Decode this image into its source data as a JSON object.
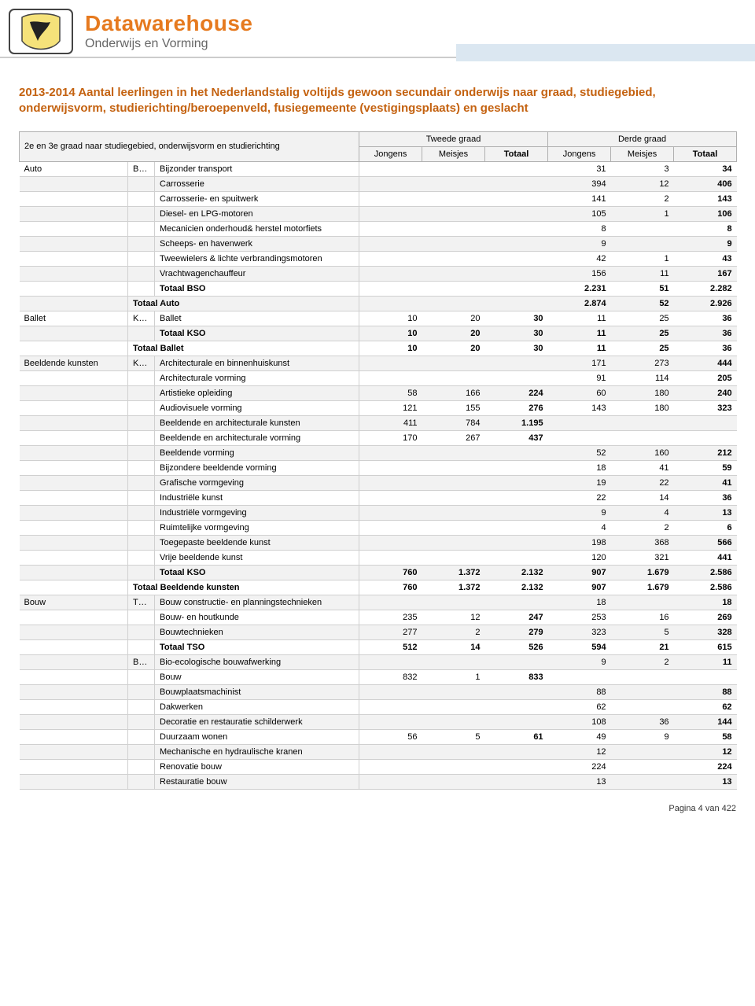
{
  "brand": {
    "title": "Datawarehouse",
    "subtitle": "Onderwijs en Vorming",
    "title_color": "#e67a1f",
    "subtitle_color": "#666666"
  },
  "page_title": "2013-2014 Aantal leerlingen in het Nederlandstalig voltijds gewoon secundair onderwijs naar graad, studiegebied, onderwijsvorm, studierichting/beroepenveld, fusiegemeente (vestigingsplaats) en geslacht",
  "page_title_color": "#c46210",
  "table": {
    "row_label": "2e en 3e graad naar studiegebied, onderwijsvorm en studierichting",
    "groups": [
      "Tweede graad",
      "Derde graad"
    ],
    "subcols": [
      "Jongens",
      "Meisjes",
      "Totaal",
      "Jongens",
      "Meisjes",
      "Totaal"
    ],
    "header_bg": "#f2f2f2",
    "alt_bg": "#f2f2f2",
    "border_color": "#b0b0b0",
    "rows": [
      {
        "cat1": "Auto",
        "cat2": "BSO",
        "cat3": "Bijzonder transport",
        "v": [
          "",
          "",
          "",
          "31",
          "3",
          "34"
        ],
        "alt": false
      },
      {
        "cat1": "",
        "cat2": "",
        "cat3": "Carrosserie",
        "v": [
          "",
          "",
          "",
          "394",
          "12",
          "406"
        ],
        "alt": true
      },
      {
        "cat1": "",
        "cat2": "",
        "cat3": "Carrosserie- en spuitwerk",
        "v": [
          "",
          "",
          "",
          "141",
          "2",
          "143"
        ],
        "alt": false
      },
      {
        "cat1": "",
        "cat2": "",
        "cat3": "Diesel- en LPG-motoren",
        "v": [
          "",
          "",
          "",
          "105",
          "1",
          "106"
        ],
        "alt": true
      },
      {
        "cat1": "",
        "cat2": "",
        "cat3": "Mecanicien onderhoud& herstel motorfiets",
        "v": [
          "",
          "",
          "",
          "8",
          "",
          "8"
        ],
        "alt": false
      },
      {
        "cat1": "",
        "cat2": "",
        "cat3": "Scheeps- en havenwerk",
        "v": [
          "",
          "",
          "",
          "9",
          "",
          "9"
        ],
        "alt": true
      },
      {
        "cat1": "",
        "cat2": "",
        "cat3": "Tweewielers & lichte verbrandingsmotoren",
        "v": [
          "",
          "",
          "",
          "42",
          "1",
          "43"
        ],
        "alt": false
      },
      {
        "cat1": "",
        "cat2": "",
        "cat3": "Vrachtwagenchauffeur",
        "v": [
          "",
          "",
          "",
          "156",
          "11",
          "167"
        ],
        "alt": true
      },
      {
        "cat1": "",
        "cat2": "",
        "cat3": "Totaal BSO",
        "v": [
          "",
          "",
          "",
          "2.231",
          "51",
          "2.282"
        ],
        "alt": false,
        "subtotal": true
      },
      {
        "cat1": "",
        "cat2_merge": "Totaal Auto",
        "v": [
          "",
          "",
          "",
          "2.874",
          "52",
          "2.926"
        ],
        "alt": true,
        "cattotal": true
      },
      {
        "cat1": "Ballet",
        "cat2": "KSO",
        "cat3": "Ballet",
        "v": [
          "10",
          "20",
          "30",
          "11",
          "25",
          "36"
        ],
        "alt": false
      },
      {
        "cat1": "",
        "cat2": "",
        "cat3": "Totaal KSO",
        "v": [
          "10",
          "20",
          "30",
          "11",
          "25",
          "36"
        ],
        "alt": true,
        "subtotal": true
      },
      {
        "cat1": "",
        "cat2_merge": "Totaal Ballet",
        "v": [
          "10",
          "20",
          "30",
          "11",
          "25",
          "36"
        ],
        "alt": false,
        "cattotal": true
      },
      {
        "cat1": "Beeldende kunsten",
        "cat2": "KSO",
        "cat3": "Architecturale en binnenhuiskunst",
        "v": [
          "",
          "",
          "",
          "171",
          "273",
          "444"
        ],
        "alt": true
      },
      {
        "cat1": "",
        "cat2": "",
        "cat3": "Architecturale vorming",
        "v": [
          "",
          "",
          "",
          "91",
          "114",
          "205"
        ],
        "alt": false
      },
      {
        "cat1": "",
        "cat2": "",
        "cat3": "Artistieke opleiding",
        "v": [
          "58",
          "166",
          "224",
          "60",
          "180",
          "240"
        ],
        "alt": true
      },
      {
        "cat1": "",
        "cat2": "",
        "cat3": "Audiovisuele vorming",
        "v": [
          "121",
          "155",
          "276",
          "143",
          "180",
          "323"
        ],
        "alt": false
      },
      {
        "cat1": "",
        "cat2": "",
        "cat3": "Beeldende en architecturale kunsten",
        "v": [
          "411",
          "784",
          "1.195",
          "",
          "",
          ""
        ],
        "alt": true
      },
      {
        "cat1": "",
        "cat2": "",
        "cat3": "Beeldende en architecturale vorming",
        "v": [
          "170",
          "267",
          "437",
          "",
          "",
          ""
        ],
        "alt": false
      },
      {
        "cat1": "",
        "cat2": "",
        "cat3": "Beeldende vorming",
        "v": [
          "",
          "",
          "",
          "52",
          "160",
          "212"
        ],
        "alt": true
      },
      {
        "cat1": "",
        "cat2": "",
        "cat3": "Bijzondere beeldende vorming",
        "v": [
          "",
          "",
          "",
          "18",
          "41",
          "59"
        ],
        "alt": false
      },
      {
        "cat1": "",
        "cat2": "",
        "cat3": "Grafische vormgeving",
        "v": [
          "",
          "",
          "",
          "19",
          "22",
          "41"
        ],
        "alt": true
      },
      {
        "cat1": "",
        "cat2": "",
        "cat3": "Industriële kunst",
        "v": [
          "",
          "",
          "",
          "22",
          "14",
          "36"
        ],
        "alt": false
      },
      {
        "cat1": "",
        "cat2": "",
        "cat3": "Industriële vormgeving",
        "v": [
          "",
          "",
          "",
          "9",
          "4",
          "13"
        ],
        "alt": true
      },
      {
        "cat1": "",
        "cat2": "",
        "cat3": "Ruimtelijke vormgeving",
        "v": [
          "",
          "",
          "",
          "4",
          "2",
          "6"
        ],
        "alt": false
      },
      {
        "cat1": "",
        "cat2": "",
        "cat3": "Toegepaste beeldende kunst",
        "v": [
          "",
          "",
          "",
          "198",
          "368",
          "566"
        ],
        "alt": true
      },
      {
        "cat1": "",
        "cat2": "",
        "cat3": "Vrije beeldende kunst",
        "v": [
          "",
          "",
          "",
          "120",
          "321",
          "441"
        ],
        "alt": false
      },
      {
        "cat1": "",
        "cat2": "",
        "cat3": "Totaal KSO",
        "v": [
          "760",
          "1.372",
          "2.132",
          "907",
          "1.679",
          "2.586"
        ],
        "alt": true,
        "subtotal": true
      },
      {
        "cat1": "",
        "cat2_merge": "Totaal Beeldende kunsten",
        "v": [
          "760",
          "1.372",
          "2.132",
          "907",
          "1.679",
          "2.586"
        ],
        "alt": false,
        "cattotal": true
      },
      {
        "cat1": "Bouw",
        "cat2": "TSO",
        "cat3": "Bouw constructie- en planningstechnieken",
        "v": [
          "",
          "",
          "",
          "18",
          "",
          "18"
        ],
        "alt": true
      },
      {
        "cat1": "",
        "cat2": "",
        "cat3": "Bouw- en houtkunde",
        "v": [
          "235",
          "12",
          "247",
          "253",
          "16",
          "269"
        ],
        "alt": false
      },
      {
        "cat1": "",
        "cat2": "",
        "cat3": "Bouwtechnieken",
        "v": [
          "277",
          "2",
          "279",
          "323",
          "5",
          "328"
        ],
        "alt": true
      },
      {
        "cat1": "",
        "cat2": "",
        "cat3": "Totaal TSO",
        "v": [
          "512",
          "14",
          "526",
          "594",
          "21",
          "615"
        ],
        "alt": false,
        "subtotal": true
      },
      {
        "cat1": "",
        "cat2": "BSO",
        "cat3": "Bio-ecologische bouwafwerking",
        "v": [
          "",
          "",
          "",
          "9",
          "2",
          "11"
        ],
        "alt": true
      },
      {
        "cat1": "",
        "cat2": "",
        "cat3": "Bouw",
        "v": [
          "832",
          "1",
          "833",
          "",
          "",
          ""
        ],
        "alt": false
      },
      {
        "cat1": "",
        "cat2": "",
        "cat3": "Bouwplaatsmachinist",
        "v": [
          "",
          "",
          "",
          "88",
          "",
          "88"
        ],
        "alt": true
      },
      {
        "cat1": "",
        "cat2": "",
        "cat3": "Dakwerken",
        "v": [
          "",
          "",
          "",
          "62",
          "",
          "62"
        ],
        "alt": false
      },
      {
        "cat1": "",
        "cat2": "",
        "cat3": "Decoratie en restauratie schilderwerk",
        "v": [
          "",
          "",
          "",
          "108",
          "36",
          "144"
        ],
        "alt": true
      },
      {
        "cat1": "",
        "cat2": "",
        "cat3": "Duurzaam wonen",
        "v": [
          "56",
          "5",
          "61",
          "49",
          "9",
          "58"
        ],
        "alt": false
      },
      {
        "cat1": "",
        "cat2": "",
        "cat3": "Mechanische en hydraulische kranen",
        "v": [
          "",
          "",
          "",
          "12",
          "",
          "12"
        ],
        "alt": true
      },
      {
        "cat1": "",
        "cat2": "",
        "cat3": "Renovatie bouw",
        "v": [
          "",
          "",
          "",
          "224",
          "",
          "224"
        ],
        "alt": false
      },
      {
        "cat1": "",
        "cat2": "",
        "cat3": "Restauratie bouw",
        "v": [
          "",
          "",
          "",
          "13",
          "",
          "13"
        ],
        "alt": true
      }
    ]
  },
  "footer": "Pagina 4 van 422"
}
